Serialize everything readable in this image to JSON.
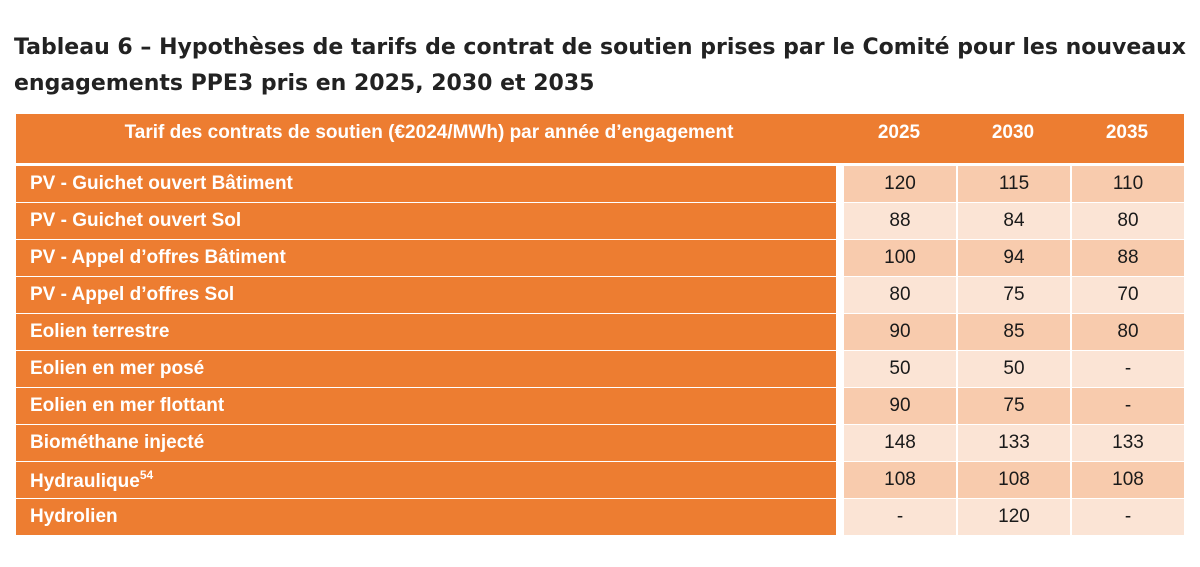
{
  "caption": "Tableau 6 – Hypothèses de tarifs de contrat de soutien prises par le Comité pour les nouveaux engagements PPE3 pris en 2025, 2030 et 2035",
  "table": {
    "header": {
      "label": "Tarif des contrats de soutien (€2024/MWh) par année d’engagement",
      "years": [
        "2025",
        "2030",
        "2035"
      ]
    },
    "rows": [
      {
        "label": "PV - Guichet ouvert Bâtiment",
        "note": "",
        "values": [
          "120",
          "115",
          "110"
        ]
      },
      {
        "label": "PV - Guichet ouvert Sol",
        "note": "",
        "values": [
          "88",
          "84",
          "80"
        ]
      },
      {
        "label": "PV - Appel d’offres Bâtiment",
        "note": "",
        "values": [
          "100",
          "94",
          "88"
        ]
      },
      {
        "label": "PV - Appel d’offres Sol",
        "note": "",
        "values": [
          "80",
          "75",
          "70"
        ]
      },
      {
        "label": "Eolien terrestre",
        "note": "",
        "values": [
          "90",
          "85",
          "80"
        ]
      },
      {
        "label": "Eolien en mer posé",
        "note": "",
        "values": [
          "50",
          "50",
          "-"
        ]
      },
      {
        "label": "Eolien en mer flottant",
        "note": "",
        "values": [
          "90",
          "75",
          "-"
        ]
      },
      {
        "label": "Biométhane injecté",
        "note": "",
        "values": [
          "148",
          "133",
          "133"
        ]
      },
      {
        "label": "Hydraulique",
        "note": "54",
        "values": [
          "108",
          "108",
          "108"
        ]
      },
      {
        "label": "Hydrolien",
        "note": "",
        "values": [
          "-",
          "120",
          "-"
        ]
      }
    ]
  },
  "colors": {
    "header_orange": "#ed7d31",
    "cell_dark": "#f8cbad",
    "cell_light": "#fbe4d5"
  }
}
